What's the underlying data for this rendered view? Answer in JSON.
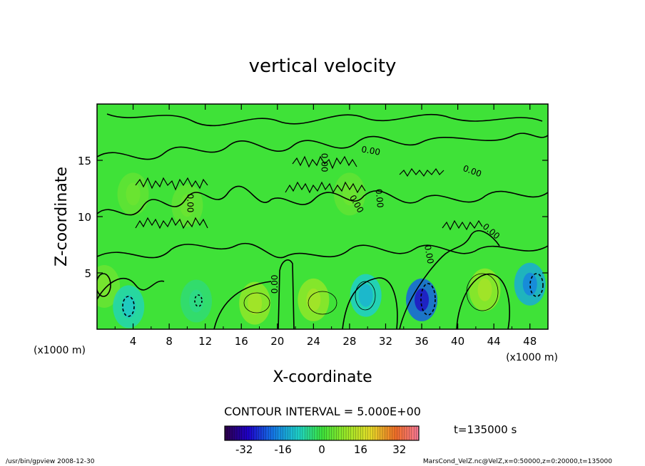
{
  "chart_data": {
    "type": "heatmap",
    "title": "vertical velocity",
    "xlabel": "X-coordinate",
    "ylabel": "Z-coordinate",
    "x_unit_left": "(x1000 m)",
    "x_unit_right": "(x1000 m)",
    "xlim": [
      0,
      50
    ],
    "ylim": [
      0,
      20
    ],
    "x_ticks": [
      "4",
      "8",
      "12",
      "16",
      "20",
      "24",
      "28",
      "32",
      "36",
      "40",
      "44",
      "48"
    ],
    "y_ticks": [
      "5",
      "10",
      "15"
    ],
    "contour_labels": [
      "0.00",
      "0.00",
      "0.00",
      "0.00",
      "0.00",
      "0.00",
      "0.00",
      "0.00"
    ],
    "contour_interval_text": "CONTOUR INTERVAL = 5.000E+00",
    "time_label": "t=135000 s",
    "colorbar": {
      "range": [
        -40,
        40
      ],
      "ticks": [
        "-32",
        "-16",
        "0",
        "16",
        "32"
      ]
    },
    "footer_left": "/usr/bin/gpview  2008-12-30",
    "footer_right": "MarsCond_VelZ.nc@VelZ,x=0:50000,z=0:20000,t=135000",
    "features": [
      {
        "x": 0.8,
        "z": 3.8,
        "w": 5
      },
      {
        "x": 3.5,
        "z": 2.0,
        "w": -8
      },
      {
        "x": 11.0,
        "z": 2.5,
        "w": -4
      },
      {
        "x": 17.5,
        "z": 2.3,
        "w": 9
      },
      {
        "x": 24.0,
        "z": 2.6,
        "w": 9
      },
      {
        "x": 29.8,
        "z": 3.0,
        "w": -10
      },
      {
        "x": 36.0,
        "z": 2.6,
        "w": -22
      },
      {
        "x": 43.0,
        "z": 3.5,
        "w": 9
      },
      {
        "x": 48.0,
        "z": 4.0,
        "w": -14
      },
      {
        "x": 4.0,
        "z": 12.0,
        "w": 4
      },
      {
        "x": 10.0,
        "z": 11.0,
        "w": 4
      },
      {
        "x": 28.0,
        "z": 12.0,
        "w": 4
      }
    ]
  }
}
